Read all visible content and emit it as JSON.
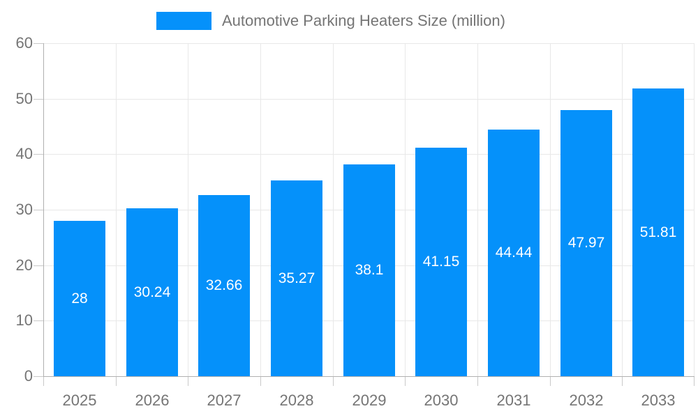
{
  "chart_data": {
    "type": "bar",
    "title": "Automotive Parking Heaters Size (million)",
    "categories": [
      "2025",
      "2026",
      "2027",
      "2028",
      "2029",
      "2030",
      "2031",
      "2032",
      "2033"
    ],
    "series": [
      {
        "name": "Automotive Parking Heaters Size (million)",
        "values": [
          28,
          30.24,
          32.66,
          35.27,
          38.1,
          41.15,
          44.44,
          47.97,
          51.81
        ],
        "value_labels": [
          "28",
          "30.24",
          "32.66",
          "35.27",
          "38.1",
          "41.15",
          "44.44",
          "47.97",
          "51.81"
        ]
      }
    ],
    "xlabel": "",
    "ylabel": "",
    "ylim": [
      0,
      60
    ],
    "yticks": [
      0,
      10,
      20,
      30,
      40,
      50,
      60
    ],
    "grid": true,
    "legend_position": "top",
    "value_label_position": "center-inside"
  },
  "theme": {
    "bar_color": "#0591fa",
    "value_label_color": "#ffffff",
    "axis_line_color": "#b0b0b0",
    "grid_color": "#e8e8e8",
    "tick_color": "#c9c9c9",
    "axis_label_color": "#757575",
    "background_color": "#ffffff"
  }
}
